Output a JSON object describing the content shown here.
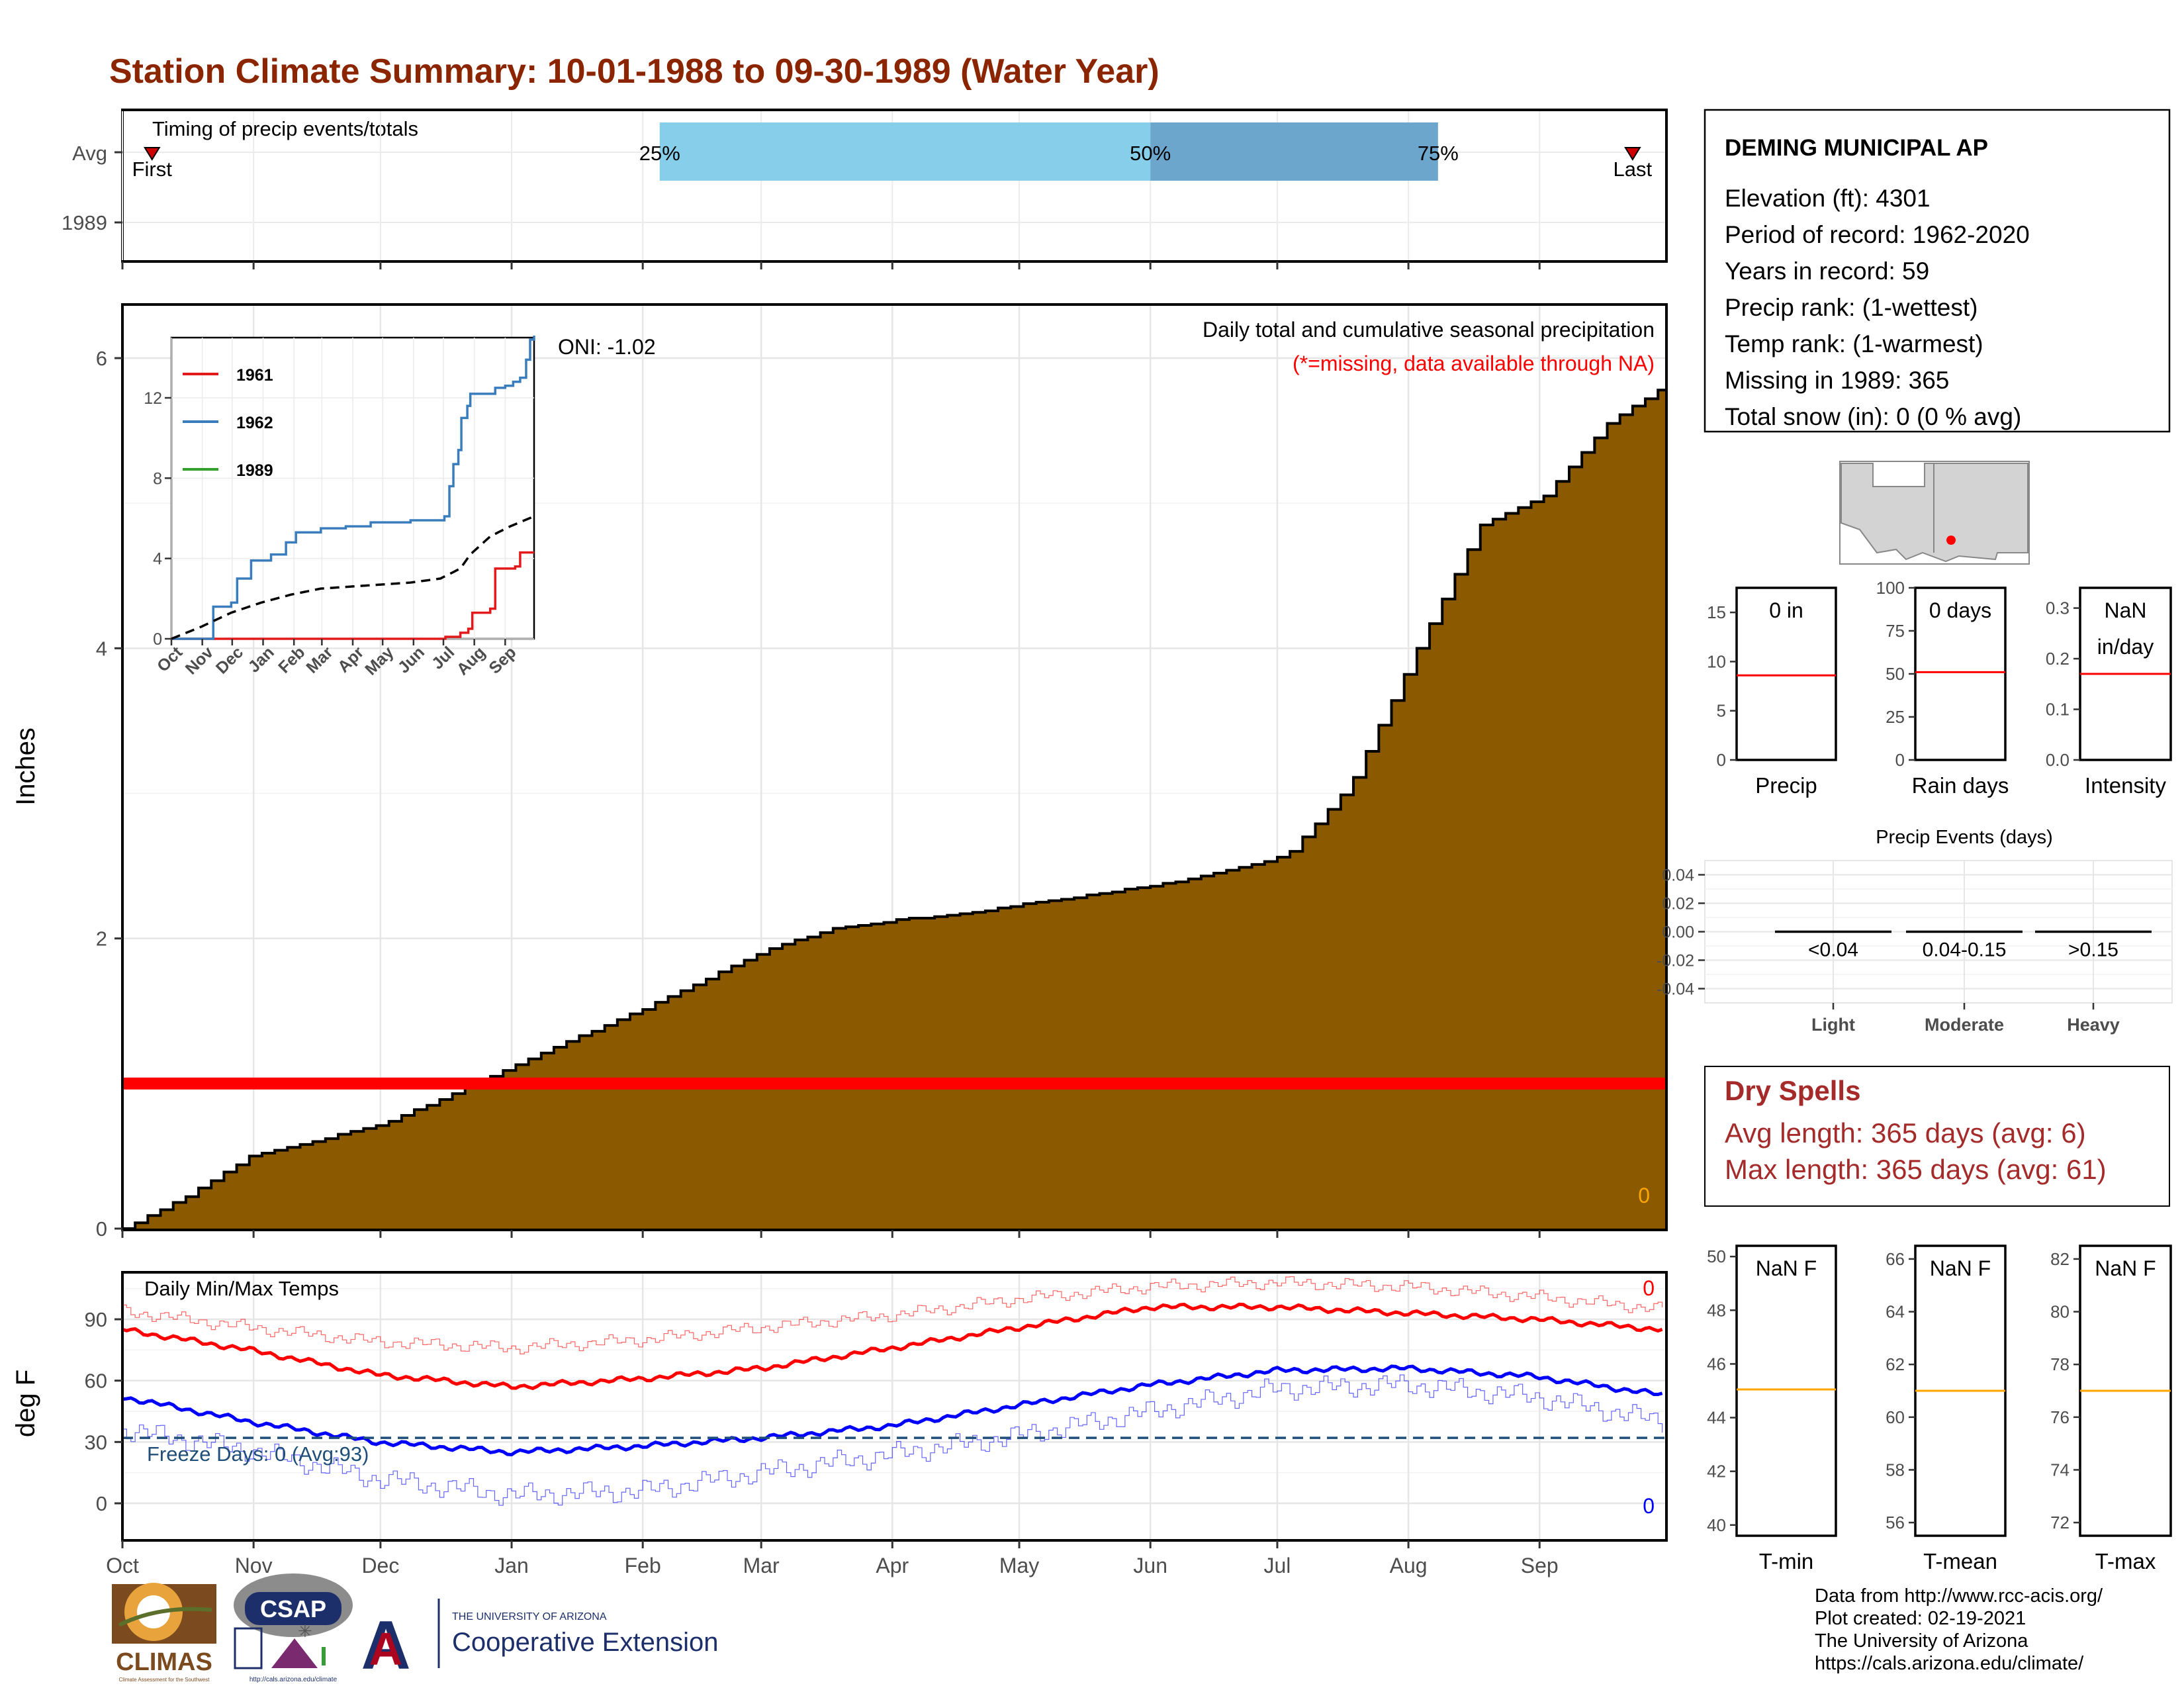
{
  "title": "Station Climate Summary: 10-01-1988 to 09-30-1989 (Water Year)",
  "months": [
    "Oct",
    "Nov",
    "Dec",
    "Jan",
    "Feb",
    "Mar",
    "Apr",
    "May",
    "Jun",
    "Jul",
    "Aug",
    "Sep"
  ],
  "timing": {
    "label": "Timing of precip events/totals",
    "rows": [
      "Avg",
      "1989"
    ],
    "first_label": "First",
    "last_label": "Last",
    "p25_label": "25%",
    "p50_label": "50%",
    "p75_label": "75%",
    "first_day": 7,
    "last_day": 357,
    "p25_day": 127,
    "p50_day": 243,
    "p75_day": 311,
    "colors": {
      "lower": "#87ceeb",
      "upper": "#6ca6cd",
      "marker": "#cc0000"
    }
  },
  "precip_panel": {
    "ylabel": "Inches",
    "oni": "ONI: -1.02",
    "title": "Daily total and cumulative seasonal precipitation",
    "subtitle": "(*=missing, data available through NA)",
    "missing_count": "0",
    "missing_line_value": 1.0,
    "fill_color": "#8b5a00",
    "missing_color": "#ff0000",
    "chart_data": {
      "type": "area",
      "x_unit": "day of water year",
      "ylim": [
        0,
        6.3
      ],
      "yticks": [
        0,
        2,
        4,
        6
      ],
      "cumulative_avg": {
        "x": [
          0,
          15,
          30,
          45,
          61,
          76,
          91,
          106,
          122,
          137,
          153,
          168,
          184,
          199,
          214,
          229,
          245,
          260,
          275,
          290,
          306,
          321,
          336,
          351,
          364
        ],
        "y": [
          0.0,
          0.22,
          0.5,
          0.6,
          0.72,
          0.9,
          1.1,
          1.3,
          1.5,
          1.71,
          1.93,
          2.07,
          2.13,
          2.17,
          2.24,
          2.3,
          2.37,
          2.46,
          2.57,
          3.05,
          4.0,
          4.85,
          5.05,
          5.55,
          5.8
        ]
      }
    }
  },
  "inset": {
    "ylim": [
      0,
      15
    ],
    "yticks": [
      0,
      4,
      8,
      12
    ],
    "legend": [
      {
        "label": "1961",
        "color": "#e31a1c"
      },
      {
        "label": "1962",
        "color": "#3a7dbd"
      },
      {
        "label": "1989",
        "color": "#33a02c"
      }
    ],
    "chart_data": {
      "type": "line",
      "x_unit": "day of water year",
      "series": [
        {
          "name": "1961",
          "x": [
            0,
            270,
            275,
            290,
            298,
            302,
            320,
            325,
            345,
            350,
            364
          ],
          "y": [
            0,
            0,
            0.1,
            0.3,
            0.5,
            1.3,
            1.5,
            3.5,
            3.6,
            4.3,
            4.3
          ]
        },
        {
          "name": "1962",
          "x": [
            0,
            40,
            42,
            60,
            66,
            80,
            100,
            115,
            125,
            150,
            175,
            200,
            240,
            274,
            279,
            283,
            288,
            291,
            297,
            300,
            325,
            335,
            343,
            350,
            356,
            360,
            364
          ],
          "y": [
            0,
            0,
            1.6,
            1.8,
            3.0,
            3.9,
            4.2,
            4.8,
            5.3,
            5.5,
            5.6,
            5.8,
            5.9,
            6.1,
            7.6,
            8.7,
            9.4,
            11.0,
            11.6,
            12.2,
            12.5,
            12.6,
            12.8,
            13.0,
            13.9,
            14.9,
            15.1
          ]
        },
        {
          "name": "Average",
          "x": [
            0,
            30,
            60,
            90,
            120,
            150,
            180,
            210,
            240,
            270,
            290,
            300,
            320,
            340,
            364
          ],
          "y": [
            0,
            0.6,
            1.3,
            1.8,
            2.2,
            2.5,
            2.6,
            2.7,
            2.8,
            3.0,
            3.5,
            4.2,
            5.1,
            5.6,
            6.1
          ]
        }
      ]
    }
  },
  "station": {
    "name": "DEMING MUNICIPAL AP",
    "lines": [
      "Elevation (ft): 4301",
      "Period of record: 1962-2020",
      "Years in record: 59",
      "Precip rank:  (1-wettest)",
      "Temp rank:  (1-warmest)",
      "Missing in 1989: 365",
      "Total snow (in): 0 (0 % avg)"
    ]
  },
  "precip_minis": [
    {
      "label": "Precip",
      "value_text": "0 in",
      "value_text2": "",
      "yticks": [
        0,
        5,
        10,
        15
      ],
      "ylim": [
        0,
        17.5
      ],
      "avg": 8.6,
      "avg_color": "#ff0000"
    },
    {
      "label": "Rain days",
      "value_text": "0 days",
      "value_text2": "",
      "yticks": [
        0,
        25,
        50,
        75,
        100
      ],
      "ylim": [
        0,
        100
      ],
      "avg": 51,
      "avg_color": "#ff0000"
    },
    {
      "label": "Intensity",
      "value_text": "NaN",
      "value_text2": "in/day",
      "yticks": [
        0.0,
        0.1,
        0.2,
        0.3
      ],
      "ylim": [
        0,
        0.34
      ],
      "avg": 0.17,
      "avg_color": "#ff0000"
    }
  ],
  "events": {
    "title": "Precip Events (days)",
    "yticks": [
      "0.04",
      "0.02",
      "0.00",
      "-0.02",
      "-0.04"
    ],
    "ytick_values": [
      0.04,
      0.02,
      0.0,
      -0.02,
      -0.04
    ],
    "categories": [
      "Light",
      "Moderate",
      "Heavy"
    ],
    "ranges": [
      "<0.04",
      "0.04-0.15",
      ">0.15"
    ],
    "chart_data": {
      "type": "bar",
      "categories": [
        "Light",
        "Moderate",
        "Heavy"
      ],
      "values": [
        0,
        0,
        0
      ],
      "ylim": [
        -0.05,
        0.05
      ]
    }
  },
  "dry_spells": {
    "title": "Dry Spells",
    "avg_line": "Avg length: 365 days (avg: 6)",
    "max_line": "Max length: 365 days (avg: 61)",
    "color": "#a52a2a"
  },
  "temps_panel": {
    "title": "Daily Min/Max Temps",
    "ylabel": "deg F",
    "yticks": [
      0,
      30,
      60,
      90
    ],
    "ylim": [
      -12,
      112
    ],
    "freeze_label": "Freeze Days: 0 (Avg:93)",
    "freeze_value": 32,
    "max_missing": "0",
    "min_missing": "0",
    "colors": {
      "max": "#ff0000",
      "min": "#0000ff",
      "freeze": "#1f4e79"
    },
    "chart_data": {
      "type": "line",
      "x_unit": "day of water year",
      "series": [
        {
          "name": "avg_max",
          "x": [
            0,
            30,
            60,
            92,
            123,
            151,
            182,
            212,
            243,
            273,
            304,
            334,
            364
          ],
          "y": [
            85,
            75,
            63,
            57,
            61,
            66,
            76,
            86,
            96,
            96,
            93,
            90,
            85
          ]
        },
        {
          "name": "avg_min",
          "x": [
            0,
            30,
            60,
            92,
            123,
            151,
            182,
            212,
            243,
            273,
            304,
            334,
            364
          ],
          "y": [
            52,
            40,
            30,
            25,
            28,
            32,
            38,
            48,
            58,
            65,
            66,
            62,
            53
          ]
        },
        {
          "name": "rec_max",
          "x": [
            0,
            30,
            60,
            92,
            123,
            151,
            182,
            212,
            243,
            273,
            304,
            334,
            364
          ],
          "y": [
            94,
            86,
            79,
            76,
            80,
            86,
            92,
            100,
            106,
            108,
            106,
            101,
            95
          ]
        },
        {
          "name": "rec_min",
          "x": [
            0,
            30,
            60,
            92,
            123,
            151,
            182,
            212,
            243,
            273,
            304,
            334,
            364
          ],
          "y": [
            36,
            26,
            12,
            4,
            6,
            15,
            24,
            33,
            45,
            56,
            58,
            52,
            40
          ]
        }
      ]
    }
  },
  "temp_minis": [
    {
      "label": "T-min",
      "value_text": "NaN F",
      "yticks": [
        40,
        42,
        44,
        46,
        48,
        50
      ],
      "ylim": [
        39.6,
        50.4
      ],
      "avg": 45.05,
      "avg_color": "#ffa500"
    },
    {
      "label": "T-mean",
      "value_text": "NaN F",
      "yticks": [
        56,
        58,
        60,
        62,
        64,
        66
      ],
      "ylim": [
        55.5,
        66.5
      ],
      "avg": 61,
      "avg_color": "#ffa500"
    },
    {
      "label": "T-max",
      "value_text": "NaN F",
      "yticks": [
        72,
        74,
        76,
        78,
        80,
        82
      ],
      "ylim": [
        71.5,
        82.5
      ],
      "avg": 77,
      "avg_color": "#ffa500"
    }
  ],
  "footer": {
    "lines": [
      "Data from http://www.rcc-acis.org/",
      "Plot created: 02-19-2021",
      "The University of Arizona",
      "https://cals.arizona.edu/climate/"
    ],
    "logos": {
      "climas": "CLIMAS",
      "climas_sub": "Climate Assessment for the Southwest",
      "csap": "CSAP",
      "csap_url": "http://cals.arizona.edu/climate",
      "ua_letter": "A",
      "ua_small": "THE UNIVERSITY OF ARIZONA",
      "ua_big": "Cooperative Extension"
    }
  }
}
